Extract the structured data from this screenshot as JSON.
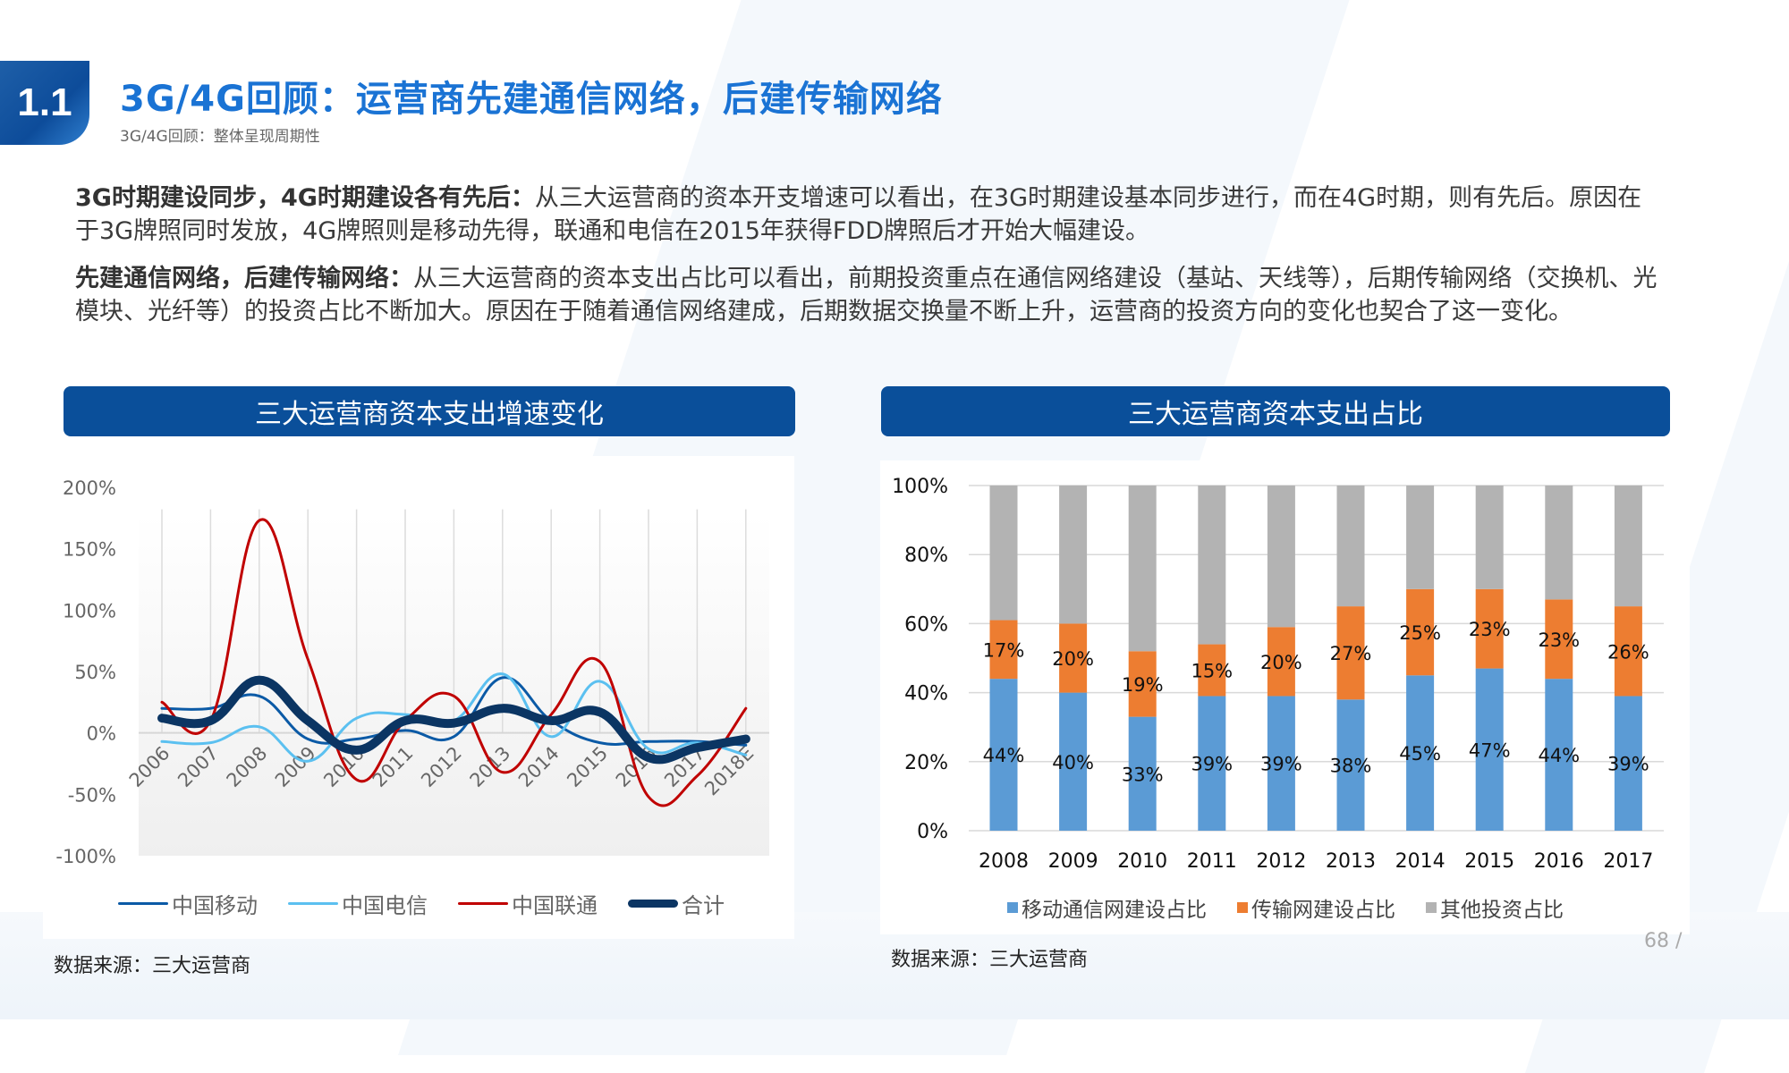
{
  "header": {
    "badge": "1.1",
    "title": "3G/4G回顾：运营商先建通信网络，后建传输网络",
    "subtitle": "3G/4G回顾：整体呈现周期性"
  },
  "paragraphs": [
    {
      "lead": "3G时期建设同步，4G时期建设各有先后：",
      "body": "从三大运营商的资本开支增速可以看出，在3G时期建设基本同步进行，而在4G时期，则有先后。原因在于3G牌照同时发放，4G牌照则是移动先得，联通和电信在2015年获得FDD牌照后才开始大幅建设。"
    },
    {
      "lead": "先建通信网络，后建传输网络：",
      "body": "从三大运营商的资本支出占比可以看出，前期投资重点在通信网络建设（基站、天线等），后期传输网络（交换机、光模块、光纤等）的投资占比不断加大。原因在于随着通信网络建成，后期数据交换量不断上升，运营商的投资方向的变化也契合了这一变化。"
    }
  ],
  "panels": {
    "left_title": "三大运营商资本支出增速变化",
    "right_title": "三大运营商资本支出占比",
    "left_source": "数据来源：三大运营商",
    "right_source": "数据来源：三大运营商"
  },
  "page_number": "68 /",
  "colors": {
    "brand_blue": "#0a4f9a",
    "title_blue": "#1a73d4",
    "mobile": "#0b5aa6",
    "telecom": "#5bc0f0",
    "unicom": "#c00000",
    "total": "#0b3563",
    "bar_blue": "#5b9bd5",
    "bar_orange": "#ed7d31",
    "bar_gray": "#b3b3b3"
  },
  "chart_data": [
    {
      "type": "line",
      "title": "三大运营商资本支出增速变化",
      "categories": [
        "2006",
        "2007",
        "2008",
        "2009",
        "2010",
        "2011",
        "2012",
        "2013",
        "2014",
        "2015",
        "2016",
        "2017",
        "2018E"
      ],
      "series": [
        {
          "name": "中国移动",
          "values": [
            20,
            20,
            30,
            -5,
            -5,
            2,
            -3,
            45,
            10,
            -8,
            -7,
            -7,
            -10
          ]
        },
        {
          "name": "中国电信",
          "values": [
            -7,
            -8,
            5,
            -23,
            12,
            15,
            10,
            48,
            -3,
            42,
            -13,
            -8,
            -18
          ]
        },
        {
          "name": "中国联通",
          "values": [
            25,
            10,
            173,
            60,
            -38,
            10,
            30,
            -32,
            15,
            58,
            -52,
            -35,
            20
          ]
        },
        {
          "name": "合计",
          "values": [
            12,
            10,
            43,
            10,
            -14,
            10,
            8,
            20,
            10,
            17,
            -20,
            -12,
            -5
          ]
        }
      ],
      "yticks": [
        "200%",
        "150%",
        "100%",
        "50%",
        "0%",
        "-50%",
        "-100%"
      ],
      "ylim": [
        -100,
        200
      ],
      "xlabel": "",
      "ylabel": "",
      "grid": "vertical",
      "legend_position": "bottom"
    },
    {
      "type": "bar",
      "stacked": true,
      "title": "三大运营商资本支出占比",
      "categories": [
        "2008",
        "2009",
        "2010",
        "2011",
        "2012",
        "2013",
        "2014",
        "2015",
        "2016",
        "2017"
      ],
      "series": [
        {
          "name": "移动通信网建设占比",
          "values": [
            44,
            40,
            33,
            39,
            39,
            38,
            45,
            47,
            44,
            39
          ]
        },
        {
          "name": "传输网建设占比",
          "values": [
            17,
            20,
            19,
            15,
            20,
            27,
            25,
            23,
            23,
            26
          ]
        },
        {
          "name": "其他投资占比",
          "values": [
            39,
            40,
            48,
            46,
            41,
            35,
            30,
            30,
            33,
            35
          ]
        }
      ],
      "yticks": [
        "100%",
        "80%",
        "60%",
        "40%",
        "20%",
        "0%"
      ],
      "ylim": [
        0,
        100
      ],
      "xlabel": "",
      "ylabel": "",
      "grid": "horizontal",
      "legend_position": "bottom"
    }
  ]
}
